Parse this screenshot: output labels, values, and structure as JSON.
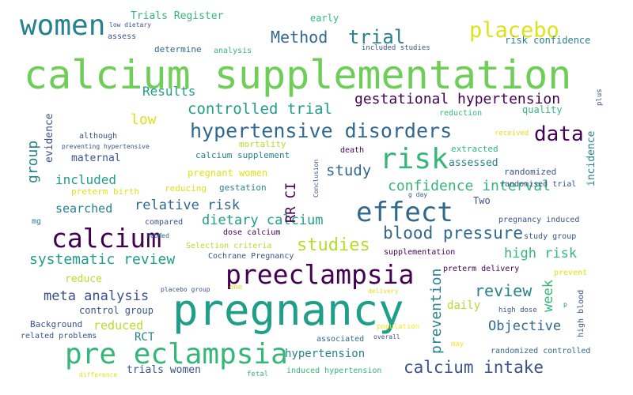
{
  "palette": {
    "dark_purple": "#440154",
    "indigo": "#3b528b",
    "blue": "#31688e",
    "teal_blue": "#26828e",
    "teal": "#1f9e89",
    "sea_green": "#35b779",
    "green": "#6ece58",
    "lime": "#b5de2b",
    "yellow": "#dce319",
    "bright_yellow": "#fde725"
  },
  "words": [
    {
      "text": "calcium supplementation",
      "color": "#6ece58"
    },
    {
      "text": "pregnancy",
      "color": "#1f9e89"
    },
    {
      "text": "preeclampsia",
      "color": "#440154"
    },
    {
      "text": "pre eclampsia",
      "color": "#35b779"
    },
    {
      "text": "women",
      "color": "#26828e"
    },
    {
      "text": "calcium",
      "color": "#440154"
    },
    {
      "text": "effect",
      "color": "#31688e"
    },
    {
      "text": "risk",
      "color": "#35b779"
    },
    {
      "text": "hypertensive disorders",
      "color": "#31688e"
    },
    {
      "text": "placebo",
      "color": "#dce319"
    },
    {
      "text": "trial",
      "color": "#26828e"
    },
    {
      "text": "Method",
      "color": "#31688e"
    },
    {
      "text": "data",
      "color": "#440154"
    },
    {
      "text": "calcium intake",
      "color": "#3b528b"
    },
    {
      "text": "blood pressure",
      "color": "#31688e"
    },
    {
      "text": "studies",
      "color": "#b5de2b"
    },
    {
      "text": "review",
      "color": "#26828e"
    },
    {
      "text": "gestational hypertension",
      "color": "#440154"
    },
    {
      "text": "controlled trial",
      "color": "#1f9e89"
    },
    {
      "text": "relative risk",
      "color": "#31688e"
    },
    {
      "text": "confidence interval",
      "color": "#35b779"
    },
    {
      "text": "systematic review",
      "color": "#1f9e89"
    },
    {
      "text": "dietary calcium",
      "color": "#1f9e89"
    },
    {
      "text": "high risk",
      "color": "#35b779"
    },
    {
      "text": "study",
      "color": "#31688e"
    },
    {
      "text": "meta analysis",
      "color": "#3b528b"
    },
    {
      "text": "Objective",
      "color": "#31688e"
    },
    {
      "text": "included",
      "color": "#1f9e89"
    },
    {
      "text": "low",
      "color": "#dce319"
    },
    {
      "text": "Results",
      "color": "#1f9e89"
    },
    {
      "text": "reduced",
      "color": "#b5de2b"
    },
    {
      "text": "searched",
      "color": "#26828e"
    },
    {
      "text": "hypertension",
      "color": "#26828e"
    },
    {
      "text": "trials women",
      "color": "#3b528b"
    },
    {
      "text": "daily",
      "color": "#b5de2b"
    },
    {
      "text": "assessed",
      "color": "#26828e"
    },
    {
      "text": "maternal",
      "color": "#3b528b"
    },
    {
      "text": "RCT",
      "color": "#26828e"
    },
    {
      "text": "reduce",
      "color": "#b5de2b"
    },
    {
      "text": "Trials Register",
      "color": "#35b779"
    },
    {
      "text": "quality",
      "color": "#35b779"
    },
    {
      "text": "Two",
      "color": "#3b528b"
    },
    {
      "text": "risk confidence",
      "color": "#26828e"
    },
    {
      "text": "pregnant women",
      "color": "#dce319"
    },
    {
      "text": "calcium supplement",
      "color": "#26828e"
    },
    {
      "text": "gestation",
      "color": "#26828e"
    },
    {
      "text": "mortality",
      "color": "#b5de2b"
    },
    {
      "text": "preterm birth",
      "color": "#dce319"
    },
    {
      "text": "reducing",
      "color": "#dce319"
    },
    {
      "text": "extracted",
      "color": "#35b779"
    },
    {
      "text": "randomized",
      "color": "#3b528b"
    },
    {
      "text": "control group",
      "color": "#3b528b"
    },
    {
      "text": "Background",
      "color": "#3b528b"
    },
    {
      "text": "determine",
      "color": "#31688e"
    },
    {
      "text": "assess",
      "color": "#3b528b"
    },
    {
      "text": "early",
      "color": "#35b779"
    },
    {
      "text": "analysis",
      "color": "#35b779"
    },
    {
      "text": "included studies",
      "color": "#3b528b"
    },
    {
      "text": "reduction",
      "color": "#35b779"
    },
    {
      "text": "although",
      "color": "#3b528b"
    },
    {
      "text": "preventing hypertensive",
      "color": "#3b528b"
    },
    {
      "text": "death",
      "color": "#440154"
    },
    {
      "text": "received",
      "color": "#dce319"
    },
    {
      "text": "randomised trial",
      "color": "#3b528b"
    },
    {
      "text": "pregnancy induced",
      "color": "#3b528b"
    },
    {
      "text": "preterm delivery",
      "color": "#440154"
    },
    {
      "text": "supplementation",
      "color": "#440154"
    },
    {
      "text": "study group",
      "color": "#3b528b"
    },
    {
      "text": "prevent",
      "color": "#dce319"
    },
    {
      "text": "high dose",
      "color": "#3b528b"
    },
    {
      "text": "compared",
      "color": "#3b528b"
    },
    {
      "text": "PubMed",
      "color": "#31688e"
    },
    {
      "text": "dose calcium",
      "color": "#440154"
    },
    {
      "text": "Selection criteria",
      "color": "#b5de2b"
    },
    {
      "text": "Cochrane Pregnancy",
      "color": "#3b528b"
    },
    {
      "text": "placebo group",
      "color": "#3b528b"
    },
    {
      "text": "one",
      "color": "#dce319"
    },
    {
      "text": "delivery",
      "color": "#dce319"
    },
    {
      "text": "related problems",
      "color": "#3b528b"
    },
    {
      "text": "associated",
      "color": "#31688e"
    },
    {
      "text": "overall",
      "color": "#3b528b"
    },
    {
      "text": "population",
      "color": "#fde725"
    },
    {
      "text": "may",
      "color": "#fde725"
    },
    {
      "text": "randomized controlled",
      "color": "#31688e"
    },
    {
      "text": "difference",
      "color": "#dce319"
    },
    {
      "text": "fetal",
      "color": "#35b779"
    },
    {
      "text": "induced hypertension",
      "color": "#35b779"
    },
    {
      "text": "low dietary",
      "color": "#3b528b"
    },
    {
      "text": "mg",
      "color": "#26828e"
    },
    {
      "text": "g day",
      "color": "#3b528b"
    },
    {
      "text": "p",
      "color": "#26828e"
    },
    {
      "text": "group",
      "color": "#26828e"
    },
    {
      "text": "evidence",
      "color": "#3b528b"
    },
    {
      "text": "RR CI",
      "color": "#440154"
    },
    {
      "text": "Conclusion",
      "color": "#3b528b"
    },
    {
      "text": "prevention",
      "color": "#26828e"
    },
    {
      "text": "week",
      "color": "#35b779"
    },
    {
      "text": "incidence",
      "color": "#26828e"
    },
    {
      "text": "plus",
      "color": "#3b528b"
    },
    {
      "text": "high blood",
      "color": "#3b528b"
    }
  ]
}
